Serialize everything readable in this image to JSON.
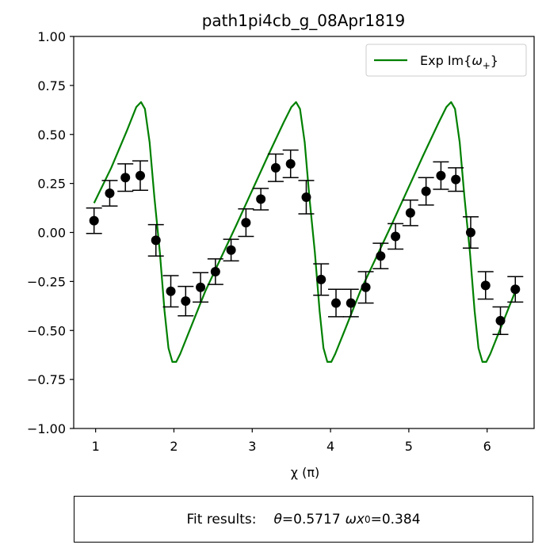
{
  "chart_data": {
    "type": "line+errorbar",
    "title": "path1pi4cb_g_08Apr1819",
    "xlabel": "χ (π)",
    "ylabel": "",
    "xlim": [
      0.72,
      6.6
    ],
    "ylim": [
      -1.0,
      1.0
    ],
    "xticks": [
      1,
      2,
      3,
      4,
      5,
      6
    ],
    "yticks": [
      1.0,
      0.75,
      0.5,
      0.25,
      0.0,
      -0.25,
      -0.5,
      -0.75,
      -1.0
    ],
    "ytick_labels": [
      "1.00",
      "0.75",
      "0.50",
      "0.25",
      "0.00",
      "−0.25",
      "−0.50",
      "−0.75",
      "−1.00"
    ],
    "xtick_labels": [
      "1",
      "2",
      "3",
      "4",
      "5",
      "6"
    ],
    "grid": false,
    "legend_position": "top-right",
    "series": [
      {
        "name": "Exp Im{ω+}",
        "legend_prefix": "Exp Im{",
        "legend_omega": "ω",
        "legend_sub": "+",
        "legend_suffix": "}",
        "kind": "line",
        "color": "#008000",
        "x": [
          0.98,
          1.2,
          1.4,
          1.52,
          1.58,
          1.63,
          1.69,
          1.75,
          1.82,
          1.88,
          1.93,
          1.98,
          2.03,
          2.08,
          2.2,
          2.4,
          2.8,
          3.2,
          3.4,
          3.5,
          3.56,
          3.61,
          3.67,
          3.73,
          3.8,
          3.86,
          3.91,
          3.96,
          4.01,
          4.06,
          4.18,
          4.38,
          4.78,
          5.18,
          5.38,
          5.48,
          5.54,
          5.59,
          5.65,
          5.71,
          5.78,
          5.84,
          5.89,
          5.94,
          5.99,
          6.04,
          6.16,
          6.36
        ],
        "y": [
          0.15,
          0.33,
          0.52,
          0.64,
          0.665,
          0.63,
          0.46,
          0.18,
          -0.1,
          -0.4,
          -0.59,
          -0.66,
          -0.66,
          -0.62,
          -0.5,
          -0.3,
          0.04,
          0.39,
          0.56,
          0.64,
          0.665,
          0.63,
          0.46,
          0.18,
          -0.1,
          -0.4,
          -0.59,
          -0.66,
          -0.66,
          -0.62,
          -0.5,
          -0.3,
          0.04,
          0.39,
          0.56,
          0.64,
          0.665,
          0.63,
          0.46,
          0.18,
          -0.1,
          -0.4,
          -0.59,
          -0.66,
          -0.66,
          -0.62,
          -0.5,
          -0.3
        ]
      },
      {
        "name": "data",
        "kind": "errorbar",
        "color": "#000000",
        "x": [
          0.98,
          1.18,
          1.38,
          1.57,
          1.77,
          1.96,
          2.15,
          2.34,
          2.53,
          2.73,
          2.92,
          3.11,
          3.3,
          3.49,
          3.69,
          3.88,
          4.07,
          4.26,
          4.45,
          4.64,
          4.83,
          5.02,
          5.22,
          5.41,
          5.6,
          5.79,
          5.98,
          6.17,
          6.36
        ],
        "y": [
          0.06,
          0.2,
          0.28,
          0.29,
          -0.04,
          -0.3,
          -0.35,
          -0.28,
          -0.2,
          -0.09,
          0.05,
          0.17,
          0.33,
          0.35,
          0.18,
          -0.24,
          -0.36,
          -0.36,
          -0.28,
          -0.12,
          -0.02,
          0.1,
          0.21,
          0.29,
          0.27,
          0.0,
          -0.27,
          -0.45,
          -0.29
        ],
        "yerr": [
          0.065,
          0.065,
          0.07,
          0.075,
          0.08,
          0.08,
          0.075,
          0.075,
          0.065,
          0.055,
          0.07,
          0.055,
          0.07,
          0.07,
          0.085,
          0.08,
          0.07,
          0.07,
          0.08,
          0.065,
          0.065,
          0.065,
          0.07,
          0.07,
          0.06,
          0.08,
          0.07,
          0.07,
          0.065
        ]
      }
    ]
  },
  "fit_results": {
    "label": "Fit results:",
    "theta_symbol": "θ",
    "theta_value": "=0.5717",
    "omega_symbol": "ω",
    "x_symbol": "x",
    "x_sub": "0",
    "omega_value": "=0.384"
  }
}
